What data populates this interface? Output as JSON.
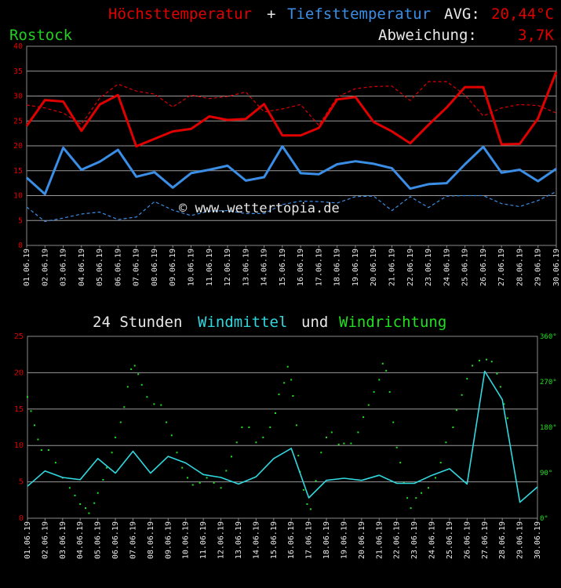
{
  "header": {
    "title_max": "Höchsttemperatur",
    "title_plus": "+",
    "title_min": "Tiefsttemperatur",
    "avg_label": "AVG:",
    "avg_value": "20,44°C",
    "station": "Rostock",
    "deviation_label": "Abweichung:",
    "deviation_value": "3,7K"
  },
  "wind_title": {
    "prefix": "24 Stunden",
    "mean": "Windmittel",
    "and": "und",
    "direction": "Windrichtung"
  },
  "watermark": "© www.wettertopia.de",
  "colors": {
    "max": "#e00000",
    "min": "#3a8ee6",
    "wind": "#30d8e0",
    "direction": "#20e020",
    "station": "#20d020",
    "axis_text": "#e00000",
    "direction_axis": "#20e020"
  },
  "chart_data": [
    {
      "type": "line",
      "x": [
        "01.06.19",
        "02.06.19",
        "03.06.19",
        "04.06.19",
        "05.06.19",
        "06.06.19",
        "07.06.19",
        "08.06.19",
        "09.06.19",
        "10.06.19",
        "11.06.19",
        "12.06.19",
        "13.06.19",
        "14.06.19",
        "15.06.19",
        "16.06.19",
        "17.06.19",
        "18.06.19",
        "19.06.19",
        "20.06.19",
        "21.06.19",
        "22.06.19",
        "23.06.19",
        "24.06.19",
        "25.06.19",
        "26.06.19",
        "27.06.19",
        "28.06.19",
        "29.06.19",
        "30.06.19"
      ],
      "ylim": [
        0,
        40
      ],
      "yticks": [
        0,
        5,
        10,
        15,
        20,
        25,
        30,
        35,
        40
      ],
      "grid": true,
      "series": [
        {
          "name": "Höchsttemperatur",
          "style": "solid",
          "color": "#e00000",
          "values": [
            24.0,
            29.2,
            28.9,
            23.0,
            28.3,
            30.2,
            19.9,
            21.4,
            22.9,
            23.4,
            25.9,
            25.2,
            25.4,
            28.4,
            22.1,
            22.1,
            23.6,
            29.3,
            29.8,
            24.8,
            22.9,
            20.5,
            24.2,
            27.7,
            31.8,
            31.8,
            20.3,
            20.4,
            25.5,
            34.9
          ]
        },
        {
          "name": "Tiefsttemperatur",
          "style": "solid",
          "color": "#3a8ee6",
          "values": [
            13.6,
            10.3,
            19.6,
            15.2,
            16.8,
            19.2,
            13.8,
            14.7,
            11.6,
            14.5,
            15.2,
            16.0,
            13.0,
            13.7,
            19.9,
            14.5,
            14.3,
            16.3,
            16.9,
            16.4,
            15.5,
            11.4,
            12.3,
            12.5,
            16.3,
            19.8,
            14.6,
            15.2,
            12.9,
            15.4
          ]
        },
        {
          "style": "dashed",
          "color": "#e00000",
          "values": [
            28.2,
            27.6,
            26.6,
            24.3,
            29.6,
            32.4,
            31.0,
            30.4,
            27.8,
            30.2,
            29.5,
            29.9,
            30.8,
            26.8,
            27.4,
            28.3,
            24.1,
            29.8,
            31.5,
            31.9,
            32.0,
            29.1,
            32.9,
            32.9,
            30.2,
            26.0,
            27.6,
            28.3,
            28.1,
            26.6
          ]
        },
        {
          "style": "dashed",
          "color": "#3a8ee6",
          "values": [
            7.7,
            4.8,
            5.5,
            6.3,
            6.7,
            5.2,
            5.7,
            8.8,
            7.1,
            6.0,
            6.9,
            7.0,
            6.4,
            6.4,
            8.2,
            8.9,
            8.8,
            8.5,
            9.8,
            9.9,
            7.0,
            9.8,
            7.6,
            9.9,
            10.0,
            10.0,
            8.4,
            7.8,
            9.0,
            10.8
          ]
        }
      ]
    },
    {
      "type": "line",
      "x": [
        "01.06.19",
        "02.06.19",
        "03.06.19",
        "04.06.19",
        "05.06.19",
        "06.06.19",
        "07.06.19",
        "08.06.19",
        "09.06.19",
        "10.06.19",
        "11.06.19",
        "12.06.19",
        "13.06.19",
        "14.06.19",
        "15.06.19",
        "16.06.19",
        "17.06.19",
        "18.06.19",
        "19.06.19",
        "20.06.19",
        "21.06.19",
        "22.06.19",
        "23.06.19",
        "24.06.19",
        "25.06.19",
        "26.06.19",
        "27.06.19",
        "28.06.19",
        "29.06.19",
        "30.06.19"
      ],
      "ylim": [
        0,
        25
      ],
      "yticks": [
        0,
        5,
        10,
        15,
        20,
        25
      ],
      "y2lim": [
        0,
        360
      ],
      "y2ticks": [
        "0°",
        "90°",
        "180°",
        "270°",
        "360°"
      ],
      "grid": true,
      "series": [
        {
          "name": "Windmittel",
          "style": "solid",
          "color": "#30d8e0",
          "values": [
            4.4,
            6.5,
            5.6,
            5.3,
            8.2,
            6.2,
            9.2,
            6.2,
            8.5,
            7.6,
            6.0,
            5.6,
            4.7,
            5.7,
            8.2,
            9.6,
            2.8,
            5.2,
            5.5,
            5.2,
            5.9,
            4.8,
            4.8,
            5.9,
            6.8,
            4.7,
            20.2,
            16.3,
            2.2,
            4.3
          ]
        },
        {
          "name": "Windrichtung",
          "type": "scatter",
          "axis": "right",
          "color": "#20e020",
          "points": [
            [
              0.0,
              240
            ],
            [
              0.2,
              212
            ],
            [
              0.4,
              184
            ],
            [
              0.6,
              156
            ],
            [
              0.8,
              135
            ],
            [
              1.2,
              135
            ],
            [
              1.6,
              110
            ],
            [
              2.0,
              80
            ],
            [
              2.4,
              60
            ],
            [
              2.7,
              45
            ],
            [
              3.0,
              28
            ],
            [
              3.3,
              20
            ],
            [
              3.5,
              10
            ],
            [
              3.8,
              30
            ],
            [
              4.0,
              50
            ],
            [
              4.3,
              76
            ],
            [
              4.5,
              100
            ],
            [
              4.8,
              130
            ],
            [
              5.0,
              160
            ],
            [
              5.3,
              190
            ],
            [
              5.5,
              220
            ],
            [
              5.7,
              260
            ],
            [
              5.9,
              295
            ],
            [
              6.1,
              302
            ],
            [
              6.3,
              285
            ],
            [
              6.5,
              264
            ],
            [
              6.8,
              240
            ],
            [
              7.2,
              226
            ],
            [
              7.6,
              224
            ],
            [
              7.9,
              190
            ],
            [
              8.2,
              164
            ],
            [
              8.5,
              130
            ],
            [
              8.8,
              100
            ],
            [
              9.1,
              80
            ],
            [
              9.4,
              66
            ],
            [
              9.8,
              70
            ],
            [
              10.2,
              80
            ],
            [
              10.6,
              70
            ],
            [
              11.0,
              60
            ],
            [
              11.3,
              94
            ],
            [
              11.6,
              122
            ],
            [
              11.9,
              150
            ],
            [
              12.2,
              180
            ],
            [
              12.6,
              180
            ],
            [
              13.0,
              150
            ],
            [
              13.4,
              160
            ],
            [
              13.8,
              180
            ],
            [
              14.1,
              208
            ],
            [
              14.3,
              245
            ],
            [
              14.6,
              268
            ],
            [
              14.8,
              300
            ],
            [
              15.0,
              274
            ],
            [
              15.1,
              242
            ],
            [
              15.3,
              184
            ],
            [
              15.4,
              124
            ],
            [
              15.5,
              92
            ],
            [
              15.7,
              56
            ],
            [
              15.9,
              28
            ],
            [
              16.1,
              18
            ],
            [
              16.4,
              74
            ],
            [
              16.7,
              130
            ],
            [
              17.0,
              160
            ],
            [
              17.3,
              170
            ],
            [
              17.7,
              146
            ],
            [
              18.0,
              148
            ],
            [
              18.4,
              148
            ],
            [
              18.8,
              170
            ],
            [
              19.1,
              200
            ],
            [
              19.4,
              224
            ],
            [
              19.7,
              250
            ],
            [
              20.0,
              274
            ],
            [
              20.2,
              306
            ],
            [
              20.4,
              292
            ],
            [
              20.6,
              250
            ],
            [
              20.8,
              190
            ],
            [
              21.0,
              140
            ],
            [
              21.2,
              110
            ],
            [
              21.4,
              70
            ],
            [
              21.6,
              40
            ],
            [
              21.8,
              20
            ],
            [
              22.1,
              40
            ],
            [
              22.4,
              50
            ],
            [
              22.8,
              60
            ],
            [
              23.2,
              80
            ],
            [
              23.5,
              110
            ],
            [
              23.8,
              150
            ],
            [
              24.2,
              180
            ],
            [
              24.4,
              214
            ],
            [
              24.7,
              244
            ],
            [
              25.0,
              276
            ],
            [
              25.3,
              302
            ],
            [
              25.7,
              312
            ],
            [
              26.1,
              314
            ],
            [
              26.4,
              310
            ],
            [
              26.7,
              286
            ],
            [
              26.9,
              260
            ],
            [
              27.1,
              226
            ],
            [
              27.3,
              198
            ]
          ]
        }
      ]
    }
  ]
}
